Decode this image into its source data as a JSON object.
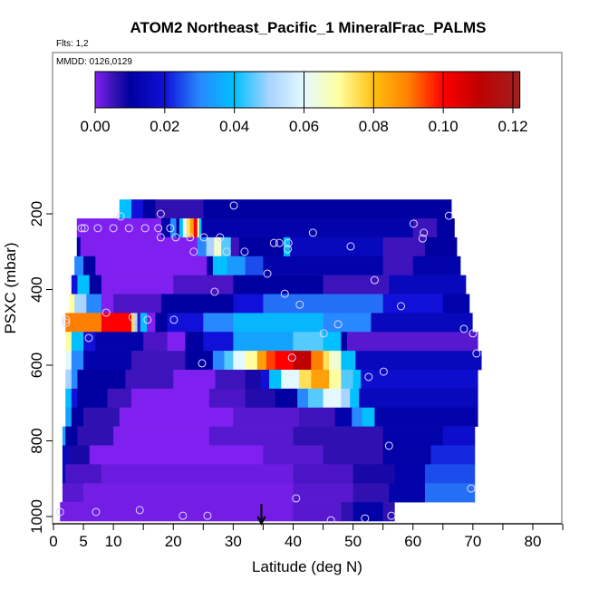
{
  "chart_data": {
    "type": "heatmap",
    "title": "ATOM2 Northeast_Pacific_1 MineralFrac_PALMS",
    "subtitle_flights": "Flts: 1,2",
    "subtitle_dates": "MMDD: 0126,0129",
    "xlabel": "Latitude (deg N)",
    "ylabel": "PSXC (mbar)",
    "xlim": [
      0,
      85
    ],
    "ylim": [
      1019,
      -226
    ],
    "x_ticks": [
      0,
      5,
      10,
      15,
      20,
      25,
      30,
      35,
      40,
      45,
      50,
      55,
      60,
      65,
      70,
      75,
      80,
      85
    ],
    "x_tick_labels": [
      "0",
      "5",
      "10",
      "",
      "20",
      "",
      "30",
      "",
      "40",
      "",
      "50",
      "",
      "60",
      "",
      "70",
      "",
      "80",
      ""
    ],
    "y_ticks": [
      200,
      400,
      600,
      800,
      1000
    ],
    "y_tick_labels": [
      "200",
      "400",
      "600",
      "800",
      "1000"
    ],
    "colorbar": {
      "range": [
        0,
        0.122
      ],
      "ticks": [
        0,
        0.02,
        0.04,
        0.06,
        0.08,
        0.1,
        0.12
      ],
      "tick_labels": [
        "0.00",
        "0.02",
        "0.04",
        "0.06",
        "0.08",
        "0.10",
        "0.12"
      ],
      "placement": "top"
    },
    "colorscale": [
      [
        0.0,
        "#8020f0"
      ],
      [
        0.006,
        "#3010b0"
      ],
      [
        0.01,
        "#0000a0"
      ],
      [
        0.02,
        "#1010d8"
      ],
      [
        0.03,
        "#2888ff"
      ],
      [
        0.04,
        "#00c0ff"
      ],
      [
        0.05,
        "#a8d4ff"
      ],
      [
        0.06,
        "#e4f8ff"
      ],
      [
        0.07,
        "#ffffa0"
      ],
      [
        0.08,
        "#ffc010"
      ],
      [
        0.09,
        "#ff8000"
      ],
      [
        0.1,
        "#ff0000"
      ],
      [
        0.11,
        "#c00000"
      ],
      [
        0.122,
        "#a02020"
      ]
    ],
    "layer_thickness_mbar": 50,
    "rows": [
      {
        "p": 187,
        "lat": [
          11.0,
          66.4
        ],
        "segments": [
          [
            11,
            0.04
          ],
          [
            13,
            0.02
          ],
          [
            15,
            0.01
          ],
          [
            17,
            0.006
          ],
          [
            25,
            0.01
          ]
        ]
      },
      {
        "p": 237,
        "lat": [
          3.9,
          66.9
        ],
        "segments": [
          [
            3.9,
            0
          ],
          [
            18,
            0.012
          ],
          [
            19.5,
            0.03
          ],
          [
            20.5,
            0.01
          ],
          [
            21,
            0.04
          ],
          [
            21.6,
            0.06
          ],
          [
            22.2,
            0.075
          ],
          [
            22.8,
            0.085
          ],
          [
            23.4,
            0.1
          ],
          [
            24,
            0.07
          ],
          [
            24.3,
            0.04
          ],
          [
            24.7,
            0.012
          ],
          [
            60,
            0.005
          ],
          [
            64,
            0.01
          ]
        ]
      },
      {
        "p": 287,
        "lat": [
          3.9,
          67.3
        ],
        "segments": [
          [
            3.9,
            0.01
          ],
          [
            4.5,
            0
          ],
          [
            24,
            0.03
          ],
          [
            25.5,
            0.05
          ],
          [
            26.8,
            0.065
          ],
          [
            28,
            0.045
          ],
          [
            29.6,
            0.005
          ],
          [
            31,
            0.01
          ],
          [
            38.4,
            0.04
          ],
          [
            39.5,
            0.015
          ],
          [
            55,
            0.005
          ],
          [
            62,
            0.01
          ]
        ]
      },
      {
        "p": 337,
        "lat": [
          3.5,
          67.9
        ],
        "segments": [
          [
            3.5,
            0.03
          ],
          [
            5,
            0.01
          ],
          [
            7,
            0
          ],
          [
            25.6,
            0.01
          ],
          [
            26.6,
            0.04
          ],
          [
            29,
            0.033
          ],
          [
            32,
            0.025
          ],
          [
            35,
            0.012
          ],
          [
            55,
            0.005
          ],
          [
            60,
            0.012
          ]
        ]
      },
      {
        "p": 387,
        "lat": [
          3.0,
          68.8
        ],
        "segments": [
          [
            3,
            0.02
          ],
          [
            4,
            0.04
          ],
          [
            6,
            0.01
          ],
          [
            8,
            0
          ],
          [
            20,
            0.004
          ],
          [
            30,
            0.01
          ],
          [
            45,
            0.005
          ],
          [
            56,
            0.015
          ]
        ]
      },
      {
        "p": 437,
        "lat": [
          2.6,
          69.4
        ],
        "segments": [
          [
            2.6,
            0.07
          ],
          [
            3.5,
            0.05
          ],
          [
            5.5,
            0.03
          ],
          [
            8,
            0
          ],
          [
            10,
            0.004
          ],
          [
            18,
            0.01
          ],
          [
            30,
            0.02
          ],
          [
            35,
            0.028
          ],
          [
            55,
            0.02
          ],
          [
            65,
            0.012
          ]
        ]
      },
      {
        "p": 487,
        "lat": [
          2.0,
          69.9
        ],
        "segments": [
          [
            2,
            0.09
          ],
          [
            8,
            0.1
          ],
          [
            13,
            0.075
          ],
          [
            13.5,
            0.05
          ],
          [
            14,
            0.005
          ],
          [
            14.5,
            0.04
          ],
          [
            15.6,
            0
          ],
          [
            17,
            0.01
          ],
          [
            19,
            0.02
          ],
          [
            25,
            0.03
          ],
          [
            30,
            0.038
          ],
          [
            45,
            0.03
          ],
          [
            53,
            0.015
          ]
        ]
      },
      {
        "p": 537,
        "lat": [
          2.0,
          70.8
        ],
        "segments": [
          [
            2,
            0.07
          ],
          [
            3,
            0.04
          ],
          [
            5,
            0.02
          ],
          [
            7,
            0.012
          ],
          [
            15,
            0.004
          ],
          [
            19,
            0
          ],
          [
            22,
            0.01
          ],
          [
            25,
            0.02
          ],
          [
            30,
            0.035
          ],
          [
            40,
            0.045
          ],
          [
            45,
            0.04
          ],
          [
            48,
            0.01
          ],
          [
            49,
            0.003
          ]
        ]
      },
      {
        "p": 587,
        "lat": [
          2.0,
          71.4
        ],
        "segments": [
          [
            2,
            0.06
          ],
          [
            3,
            0.03
          ],
          [
            5,
            0.012
          ],
          [
            13,
            0.005
          ],
          [
            22,
            0.01
          ],
          [
            26.6,
            0.03
          ],
          [
            28.5,
            0.045
          ],
          [
            30,
            0.06
          ],
          [
            32,
            0.07
          ],
          [
            34,
            0.085
          ],
          [
            35.5,
            0.095
          ],
          [
            37,
            0.1
          ],
          [
            40,
            0.11
          ],
          [
            43,
            0.09
          ],
          [
            45,
            0.075
          ],
          [
            46,
            0.065
          ],
          [
            48,
            0.04
          ],
          [
            50.4,
            0.015
          ]
        ]
      },
      {
        "p": 637,
        "lat": [
          2.0,
          70.8
        ],
        "segments": [
          [
            2,
            0.05
          ],
          [
            3,
            0.03
          ],
          [
            4,
            0.01
          ],
          [
            12,
            0.005
          ],
          [
            20,
            0
          ],
          [
            27,
            0.005
          ],
          [
            32,
            0.008
          ],
          [
            34.6,
            0.02
          ],
          [
            36,
            0.04
          ],
          [
            38,
            0.06
          ],
          [
            41,
            0.075
          ],
          [
            43,
            0.085
          ],
          [
            46,
            0.07
          ],
          [
            48,
            0.045
          ],
          [
            50,
            0.04
          ],
          [
            51.3,
            0.018
          ]
        ]
      },
      {
        "p": 687,
        "lat": [
          2.0,
          70.8
        ],
        "segments": [
          [
            2,
            0.04
          ],
          [
            3,
            0.02
          ],
          [
            4,
            0.01
          ],
          [
            9,
            0.005
          ],
          [
            13,
            0
          ],
          [
            26,
            0.004
          ],
          [
            32,
            0.007
          ],
          [
            37,
            0.01
          ],
          [
            40.7,
            0.03
          ],
          [
            42.5,
            0.045
          ],
          [
            45,
            0.06
          ],
          [
            48,
            0.05
          ],
          [
            49.5,
            0.04
          ],
          [
            51,
            0.015
          ]
        ]
      },
      {
        "p": 737,
        "lat": [
          2.0,
          70.8
        ],
        "segments": [
          [
            2,
            0.035
          ],
          [
            3,
            0.01
          ],
          [
            5,
            0.006
          ],
          [
            11,
            0
          ],
          [
            30,
            0.003
          ],
          [
            41,
            0.005
          ],
          [
            47,
            0.012
          ],
          [
            49.8,
            0.03
          ],
          [
            51.5,
            0.04
          ],
          [
            53.6,
            0.012
          ]
        ]
      },
      {
        "p": 787,
        "lat": [
          1.5,
          70.3
        ],
        "segments": [
          [
            1.5,
            0.035
          ],
          [
            2,
            0.01
          ],
          [
            4,
            0.006
          ],
          [
            10,
            0
          ],
          [
            26,
            0.003
          ],
          [
            40,
            0.006
          ],
          [
            55,
            0.012
          ],
          [
            65,
            0.018
          ]
        ]
      },
      {
        "p": 837,
        "lat": [
          1.5,
          70.3
        ],
        "segments": [
          [
            1.5,
            0.015
          ],
          [
            2.5,
            0.008
          ],
          [
            6,
            0
          ],
          [
            35,
            0.003
          ],
          [
            45,
            0.006
          ],
          [
            55,
            0.011
          ],
          [
            63,
            0.022
          ]
        ]
      },
      {
        "p": 887,
        "lat": [
          1.5,
          70.3
        ],
        "segments": [
          [
            1.5,
            0.015
          ],
          [
            2,
            0.004
          ],
          [
            8,
            0.0015
          ],
          [
            40,
            0.004
          ],
          [
            50,
            0.008
          ],
          [
            57,
            0.012
          ],
          [
            62,
            0.025
          ]
        ]
      },
      {
        "p": 937,
        "lat": [
          1.5,
          70.3
        ],
        "segments": [
          [
            1.5,
            0.003
          ],
          [
            5,
            0.001
          ],
          [
            40,
            0.003
          ],
          [
            50,
            0.006
          ],
          [
            56,
            0.012
          ],
          [
            62,
            0.028
          ]
        ]
      },
      {
        "p": 987,
        "lat": [
          1.1,
          56.9
        ],
        "segments": [
          [
            1.1,
            0.001
          ],
          [
            40,
            0.003
          ],
          [
            48,
            0.006
          ],
          [
            50,
            0.011
          ],
          [
            55,
            0.006
          ]
        ]
      }
    ],
    "observations": [
      [
        11.2,
        207
      ],
      [
        17.9,
        200
      ],
      [
        30.1,
        178
      ],
      [
        4.7,
        238
      ],
      [
        5.2,
        238
      ],
      [
        7.4,
        238
      ],
      [
        10,
        238
      ],
      [
        12.6,
        238
      ],
      [
        15.3,
        238
      ],
      [
        17.5,
        238
      ],
      [
        19.5,
        238
      ],
      [
        17.9,
        262
      ],
      [
        20.4,
        262
      ],
      [
        22.8,
        262
      ],
      [
        25.1,
        262
      ],
      [
        27.8,
        262
      ],
      [
        23.4,
        300
      ],
      [
        28.9,
        300
      ],
      [
        31.9,
        300
      ],
      [
        36.8,
        277
      ],
      [
        37.7,
        277
      ],
      [
        39.2,
        277
      ],
      [
        39.1,
        293
      ],
      [
        43.3,
        250
      ],
      [
        49.6,
        286
      ],
      [
        60.1,
        226
      ],
      [
        61.8,
        250
      ],
      [
        61.6,
        265
      ],
      [
        66,
        205
      ],
      [
        35.7,
        358
      ],
      [
        26.9,
        406
      ],
      [
        38.6,
        411
      ],
      [
        41.1,
        440
      ],
      [
        53.6,
        375
      ],
      [
        58,
        444
      ],
      [
        8.8,
        461
      ],
      [
        13.2,
        473
      ],
      [
        15.7,
        480
      ],
      [
        20.1,
        480
      ],
      [
        2.1,
        480
      ],
      [
        2.1,
        488
      ],
      [
        47.5,
        492
      ],
      [
        45.1,
        516
      ],
      [
        5.9,
        528
      ],
      [
        68.5,
        504
      ],
      [
        70,
        516
      ],
      [
        70.6,
        569
      ],
      [
        24.8,
        595
      ],
      [
        39.8,
        580
      ],
      [
        52.6,
        631
      ],
      [
        55.1,
        617
      ],
      [
        56,
        813
      ],
      [
        69.7,
        926
      ],
      [
        40.5,
        952
      ],
      [
        1.1,
        988
      ],
      [
        7.1,
        988
      ],
      [
        14.4,
        983
      ],
      [
        21.6,
        998
      ],
      [
        25.7,
        998
      ],
      [
        46.3,
        1010
      ],
      [
        52,
        1005
      ],
      [
        56.4,
        998
      ]
    ],
    "marker_arrow_lat": 34.7,
    "marker_color": "#e0d8ff",
    "grid": false
  }
}
